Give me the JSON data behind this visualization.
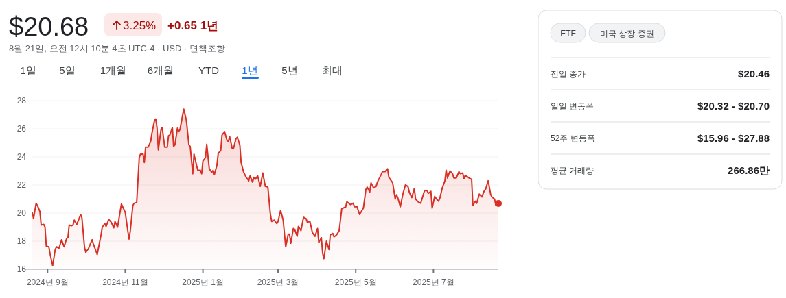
{
  "chart_data": {
    "type": "area",
    "title": "$20.68",
    "subtitle": "8월 21일, 오전 12시 10분 4초 UTC-4 · USD · 면책조항",
    "annotations": [
      "3.25%",
      "+0.65 1년",
      "1일",
      "5일",
      "1개월",
      "6개월",
      "YTD",
      "1년",
      "5년",
      "최대",
      "ETF",
      "미국 상장 증권",
      "전일 종가",
      "$20.46",
      "일일 변동폭",
      "$20.32 - $20.70",
      "52주 변동폭",
      "$15.96 - $27.88",
      "평균 거래량",
      "266.86만"
    ],
    "xlim": [
      "2024-08-20",
      "2025-08-21"
    ],
    "xticks": [
      {
        "value": "2024-09-01",
        "label": "2024년 9월"
      },
      {
        "value": "2024-11-01",
        "label": "2024년 11월"
      },
      {
        "value": "2025-01-01",
        "label": "2025년 1월"
      },
      {
        "value": "2025-03-01",
        "label": "2025년 3월"
      },
      {
        "value": "2025-05-01",
        "label": "2025년 5월"
      },
      {
        "value": "2025-07-01",
        "label": "2025년 7월"
      }
    ],
    "ylim": [
      16,
      28
    ],
    "yticks": [
      16,
      18,
      20,
      22,
      24,
      26,
      28
    ],
    "grid": "y",
    "series": [
      {
        "color": "#d93025",
        "x": [
          "2024-08-20",
          "2024-08-21",
          "2024-08-23",
          "2024-08-24",
          "2024-08-26",
          "2024-08-27",
          "2024-08-29",
          "2024-08-30",
          "2024-08-31",
          "2024-09-02",
          "2024-09-03",
          "2024-09-05",
          "2024-09-07",
          "2024-09-08",
          "2024-09-10",
          "2024-09-12",
          "2024-09-14",
          "2024-09-16",
          "2024-09-17",
          "2024-09-18",
          "2024-09-20",
          "2024-09-21",
          "2024-09-22",
          "2024-09-24",
          "2024-09-27",
          "2024-09-28",
          "2024-09-30",
          "2024-10-01",
          "2024-10-03",
          "2024-10-06",
          "2024-10-07",
          "2024-10-10",
          "2024-10-13",
          "2024-10-14",
          "2024-10-16",
          "2024-10-17",
          "2024-10-19",
          "2024-10-21",
          "2024-10-23",
          "2024-10-24",
          "2024-10-26",
          "2024-10-29",
          "2024-11-01",
          "2024-11-03",
          "2024-11-04",
          "2024-11-05",
          "2024-11-07",
          "2024-11-08",
          "2024-11-10",
          "2024-11-12",
          "2024-11-13",
          "2024-11-15",
          "2024-11-16",
          "2024-11-17",
          "2024-11-19",
          "2024-11-21",
          "2024-11-22",
          "2024-11-24",
          "2024-11-25",
          "2024-11-26",
          "2024-11-27",
          "2024-11-29",
          "2024-11-30",
          "2024-12-02",
          "2024-12-04",
          "2024-12-05",
          "2024-12-06",
          "2024-12-08",
          "2024-12-09",
          "2024-12-10",
          "2024-12-12",
          "2024-12-13",
          "2024-12-14",
          "2024-12-16",
          "2024-12-17",
          "2024-12-19",
          "2024-12-21",
          "2024-12-22",
          "2024-12-24",
          "2024-12-25",
          "2024-12-27",
          "2024-12-28",
          "2024-12-30",
          "2024-12-31",
          "2025-01-01",
          "2025-01-03",
          "2025-01-04",
          "2025-01-06",
          "2025-01-08",
          "2025-01-09",
          "2025-01-10",
          "2025-01-12",
          "2025-01-13",
          "2025-01-15",
          "2025-01-16",
          "2025-01-18",
          "2025-01-20",
          "2025-01-21",
          "2025-01-22",
          "2025-01-24",
          "2025-01-25",
          "2025-01-27",
          "2025-01-28",
          "2025-01-30",
          "2025-01-31",
          "2025-02-02",
          "2025-02-04",
          "2025-02-06",
          "2025-02-07",
          "2025-02-09",
          "2025-02-10",
          "2025-02-11",
          "2025-02-13",
          "2025-02-15",
          "2025-02-17",
          "2025-02-19",
          "2025-02-21",
          "2025-02-23",
          "2025-02-24",
          "2025-02-26",
          "2025-02-28",
          "2025-03-01",
          "2025-03-03",
          "2025-03-05",
          "2025-03-07",
          "2025-03-09",
          "2025-03-10",
          "2025-03-11",
          "2025-03-13",
          "2025-03-14",
          "2025-03-16",
          "2025-03-17",
          "2025-03-19",
          "2025-03-21",
          "2025-03-23",
          "2025-03-24",
          "2025-03-26",
          "2025-03-28",
          "2025-03-30",
          "2025-04-01",
          "2025-04-02",
          "2025-04-04",
          "2025-04-05",
          "2025-04-06",
          "2025-04-08",
          "2025-04-10",
          "2025-04-11",
          "2025-04-13",
          "2025-04-14",
          "2025-04-16",
          "2025-04-18",
          "2025-04-20",
          "2025-04-22",
          "2025-04-23",
          "2025-04-24",
          "2025-04-27",
          "2025-04-29",
          "2025-04-30",
          "2025-05-02",
          "2025-05-04",
          "2025-05-07",
          "2025-05-09",
          "2025-05-10",
          "2025-05-12",
          "2025-05-13",
          "2025-05-15",
          "2025-05-17",
          "2025-05-18",
          "2025-05-21",
          "2025-05-22",
          "2025-05-24",
          "2025-05-26",
          "2025-05-27",
          "2025-05-30",
          "2025-06-01",
          "2025-06-02",
          "2025-06-03",
          "2025-06-05",
          "2025-06-07",
          "2025-06-09",
          "2025-06-11",
          "2025-06-12",
          "2025-06-14",
          "2025-06-16",
          "2025-06-17",
          "2025-06-19",
          "2025-06-21",
          "2025-06-22",
          "2025-06-24",
          "2025-06-26",
          "2025-06-27",
          "2025-06-29",
          "2025-06-30",
          "2025-07-02",
          "2025-07-03",
          "2025-07-05",
          "2025-07-06",
          "2025-07-08",
          "2025-07-10",
          "2025-07-11",
          "2025-07-12",
          "2025-07-14",
          "2025-07-16",
          "2025-07-17",
          "2025-07-19",
          "2025-07-21",
          "2025-07-22",
          "2025-07-24",
          "2025-07-25",
          "2025-07-26",
          "2025-07-29",
          "2025-07-31",
          "2025-08-01",
          "2025-08-03",
          "2025-08-04",
          "2025-08-06",
          "2025-08-08",
          "2025-08-10",
          "2025-08-11",
          "2025-08-13",
          "2025-08-15",
          "2025-08-16",
          "2025-08-18",
          "2025-08-19",
          "2025-08-20",
          "2025-08-21"
        ],
        "values": [
          20.05,
          19.6,
          20.7,
          20.55,
          20.1,
          19.15,
          19.2,
          19.0,
          17.65,
          17.6,
          17.1,
          16.25,
          17.4,
          17.6,
          17.5,
          18.1,
          17.6,
          18.2,
          18.25,
          19.15,
          19.1,
          19.15,
          19.5,
          19.2,
          19.9,
          19.65,
          17.6,
          17.2,
          17.45,
          18.1,
          17.8,
          17.05,
          18.45,
          19.0,
          19.25,
          19.05,
          19.55,
          19.35,
          18.95,
          19.4,
          19.0,
          20.65,
          20.05,
          18.75,
          18.15,
          18.75,
          20.55,
          20.7,
          20.75,
          23.95,
          24.2,
          24.2,
          23.6,
          24.7,
          24.7,
          25.1,
          25.7,
          26.6,
          26.7,
          26.05,
          24.5,
          25.9,
          26.1,
          24.7,
          24.7,
          25.5,
          25.55,
          26.1,
          24.75,
          24.85,
          26.05,
          25.8,
          25.95,
          26.95,
          27.4,
          26.6,
          24.85,
          24.75,
          22.8,
          24.2,
          23.4,
          23.05,
          23.05,
          22.8,
          23.7,
          23.95,
          24.9,
          23.15,
          22.9,
          23.05,
          22.75,
          23.4,
          24.25,
          24.45,
          25.55,
          25.8,
          25.15,
          25.1,
          25.45,
          24.6,
          24.6,
          25.3,
          25.4,
          24.85,
          23.6,
          22.9,
          22.55,
          22.3,
          22.65,
          22.2,
          22.55,
          22.4,
          22.65,
          21.9,
          22.85,
          21.9,
          21.85,
          19.9,
          19.4,
          19.5,
          19.25,
          19.4,
          20.2,
          19.5,
          17.6,
          18.5,
          18.5,
          17.85,
          18.9,
          18.85,
          18.35,
          19.05,
          18.75,
          19.7,
          19.6,
          19.35,
          19.4,
          18.6,
          18.35,
          18.9,
          17.9,
          18.25,
          17.15,
          16.75,
          18.0,
          17.4,
          18.45,
          18.55,
          18.3,
          18.45,
          18.75,
          20.3,
          20.4,
          20.4,
          20.8,
          20.6,
          20.7,
          20.45,
          20.45,
          19.9,
          20.35,
          21.7,
          21.85,
          21.5,
          22.15,
          21.8,
          21.9,
          22.2,
          22.75,
          22.95,
          22.95,
          23.15,
          22.55,
          22.15,
          21.0,
          21.3,
          21.1,
          20.45,
          21.35,
          22.0,
          21.9,
          21.5,
          21.1,
          21.75,
          21.0,
          20.8,
          20.7,
          21.0,
          21.6,
          21.6,
          21.4,
          21.55,
          20.35,
          21.2,
          21.05,
          20.85,
          21.05,
          21.8,
          22.3,
          23.05,
          22.5,
          23.0,
          22.8,
          22.5,
          22.5,
          22.95,
          22.8,
          22.85,
          22.45,
          22.7,
          22.5,
          22.4,
          20.55,
          20.85,
          20.7,
          21.35,
          21.15,
          21.6,
          21.7,
          22.3,
          21.3,
          21.15,
          21.0,
          20.55,
          20.7,
          20.68
        ]
      }
    ]
  }
}
